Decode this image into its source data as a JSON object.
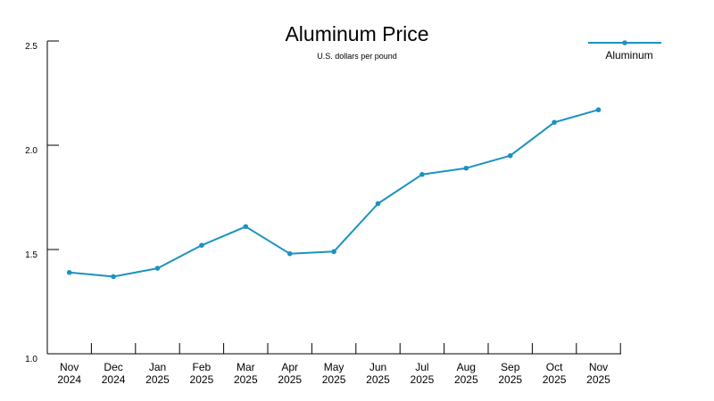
{
  "chart_data": {
    "type": "line",
    "title": "Aluminum Price",
    "subtitle": "U.S. dollars per pound",
    "xlabel": "",
    "ylabel": "",
    "categories": [
      [
        "Nov",
        "2024"
      ],
      [
        "Dec",
        "2024"
      ],
      [
        "Jan",
        "2025"
      ],
      [
        "Feb",
        "2025"
      ],
      [
        "Mar",
        "2025"
      ],
      [
        "Apr",
        "2025"
      ],
      [
        "May",
        "2025"
      ],
      [
        "Jun",
        "2025"
      ],
      [
        "Jul",
        "2025"
      ],
      [
        "Aug",
        "2025"
      ],
      [
        "Sep",
        "2025"
      ],
      [
        "Oct",
        "2025"
      ],
      [
        "Nov",
        "2025"
      ]
    ],
    "series": [
      {
        "name": "Aluminum",
        "color": "#1a93c0",
        "values": [
          1.39,
          1.37,
          1.41,
          1.52,
          1.61,
          1.48,
          1.49,
          1.72,
          1.86,
          1.89,
          1.95,
          2.11,
          2.17
        ]
      }
    ],
    "ylim": [
      1.0,
      2.5
    ],
    "yticks": [
      "1.0",
      "1.5",
      "2.0",
      "2.5"
    ],
    "grid": false,
    "legend_position": "top-right"
  }
}
